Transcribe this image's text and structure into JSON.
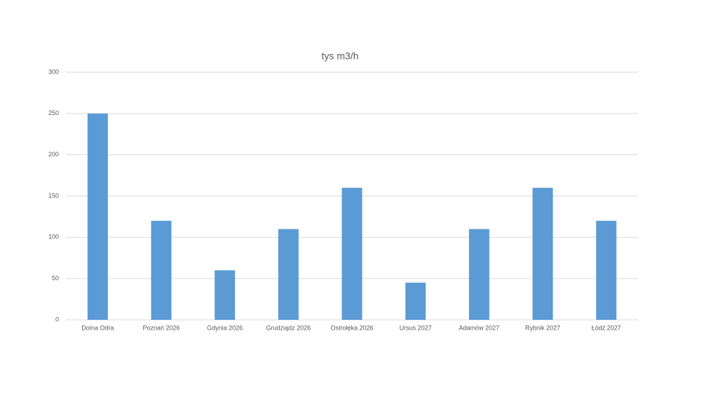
{
  "chart_data": {
    "type": "bar",
    "title": "tys m3/h",
    "categories": [
      "Dolna Odra",
      "Poznań 2026",
      "Gdynia 2026",
      "Grudziądz 2026",
      "Ostrołęka 2026",
      "Ursus 2027",
      "Adamów 2027",
      "Rybnik 2027",
      "Łódź 2027"
    ],
    "values": [
      250,
      120,
      60,
      110,
      160,
      45,
      110,
      160,
      120
    ],
    "color": "#5b9bd5",
    "ylim": [
      0,
      300
    ],
    "yticks": [
      0,
      50,
      100,
      150,
      200,
      250,
      300
    ],
    "grid": true
  }
}
